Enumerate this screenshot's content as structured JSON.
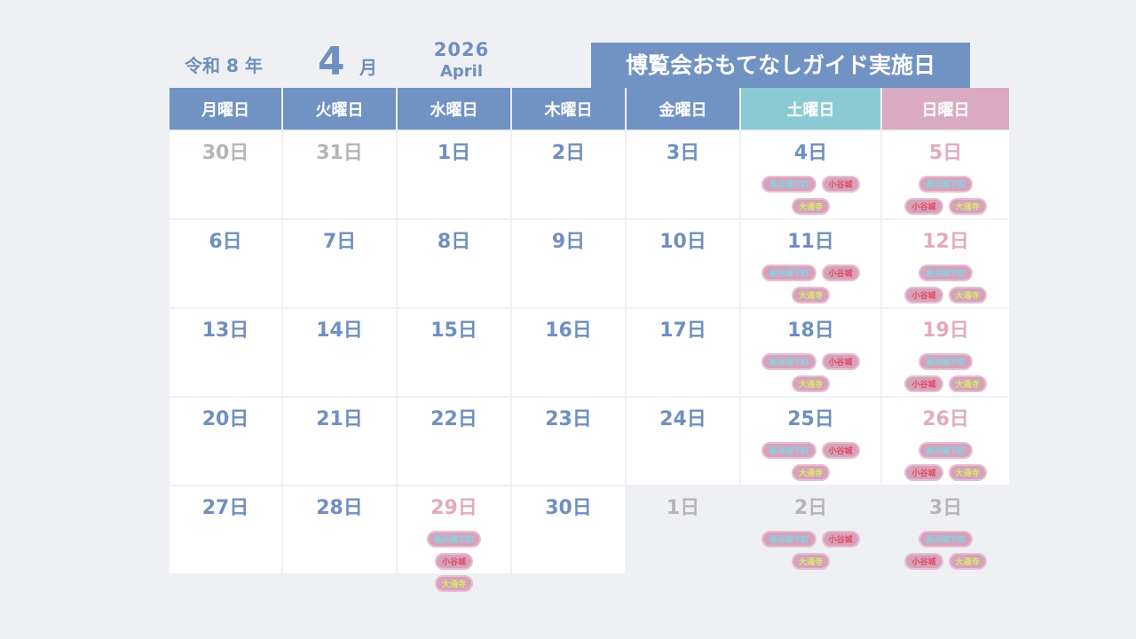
{
  "header": {
    "era": "令和 8 年",
    "month": "4",
    "month_suffix": "月",
    "year": "2026",
    "month_name": "April",
    "title": "博覧会おもてなしガイド実施日"
  },
  "weekdays": [
    {
      "label": "月曜日",
      "color": "#7193c4"
    },
    {
      "label": "火曜日",
      "color": "#7193c4"
    },
    {
      "label": "水曜日",
      "color": "#7193c4"
    },
    {
      "label": "木曜日",
      "color": "#7193c4"
    },
    {
      "label": "金曜日",
      "color": "#7193c4"
    },
    {
      "label": "土曜日",
      "color": "#8ccad3"
    },
    {
      "label": "日曜日",
      "color": "#d9aac2"
    }
  ],
  "weeks": [
    [
      {
        "day": "30日",
        "color": "#b5b5b5"
      },
      {
        "day": "31日",
        "color": "#b5b5b5"
      },
      {
        "day": "1日",
        "color": "#6f8fbf"
      },
      {
        "day": "2日",
        "color": "#6f8fbf"
      },
      {
        "day": "3日",
        "color": "#6f8fbf"
      },
      {
        "day": "4日",
        "color": "#6f8fbf",
        "tags": [
          "長浜城下町",
          "小谷城",
          "大通寺"
        ]
      },
      {
        "day": "5日",
        "color": "#e3a9c0",
        "tags": [
          "長浜城下町",
          "小谷城",
          "大通寺"
        ]
      }
    ],
    [
      {
        "day": "6日",
        "color": "#6f8fbf"
      },
      {
        "day": "7日",
        "color": "#6f8fbf"
      },
      {
        "day": "8日",
        "color": "#6f8fbf"
      },
      {
        "day": "9日",
        "color": "#6f8fbf"
      },
      {
        "day": "10日",
        "color": "#6f8fbf"
      },
      {
        "day": "11日",
        "color": "#6f8fbf",
        "tags": [
          "長浜城下町",
          "小谷城",
          "大通寺"
        ]
      },
      {
        "day": "12日",
        "color": "#e3a9c0",
        "tags": [
          "長浜城下町",
          "小谷城",
          "大通寺"
        ]
      }
    ],
    [
      {
        "day": "13日",
        "color": "#6f8fbf"
      },
      {
        "day": "14日",
        "color": "#6f8fbf"
      },
      {
        "day": "15日",
        "color": "#6f8fbf"
      },
      {
        "day": "16日",
        "color": "#6f8fbf"
      },
      {
        "day": "17日",
        "color": "#6f8fbf"
      },
      {
        "day": "18日",
        "color": "#6f8fbf",
        "tags": [
          "長浜城下町",
          "小谷城",
          "大通寺"
        ]
      },
      {
        "day": "19日",
        "color": "#e3a9c0",
        "tags": [
          "長浜城下町",
          "小谷城",
          "大通寺"
        ]
      }
    ],
    [
      {
        "day": "20日",
        "color": "#6f8fbf"
      },
      {
        "day": "21日",
        "color": "#6f8fbf"
      },
      {
        "day": "22日",
        "color": "#6f8fbf"
      },
      {
        "day": "23日",
        "color": "#6f8fbf"
      },
      {
        "day": "24日",
        "color": "#6f8fbf"
      },
      {
        "day": "25日",
        "color": "#6f8fbf",
        "tags": [
          "長浜城下町",
          "小谷城",
          "大通寺"
        ]
      },
      {
        "day": "26日",
        "color": "#e3a9c0",
        "tags": [
          "長浜城下町",
          "小谷城",
          "大通寺"
        ]
      }
    ],
    [
      {
        "day": "27日",
        "color": "#6f8fbf"
      },
      {
        "day": "28日",
        "color": "#6f8fbf"
      },
      {
        "day": "29日",
        "color": "#e3a9c0",
        "tags": [
          "長浜城下町",
          "小谷城",
          "大通寺"
        ]
      },
      {
        "day": "30日",
        "color": "#6f8fbf"
      },
      {
        "day": "1日",
        "color": "#b5b5b5"
      },
      {
        "day": "2日",
        "color": "#b5b5b5",
        "tags": [
          "長浜城下町",
          "小谷城",
          "大通寺"
        ]
      },
      {
        "day": "3日",
        "color": "#b5b5b5",
        "tags": [
          "長浜城下町",
          "小谷城",
          "大通寺"
        ]
      }
    ]
  ]
}
